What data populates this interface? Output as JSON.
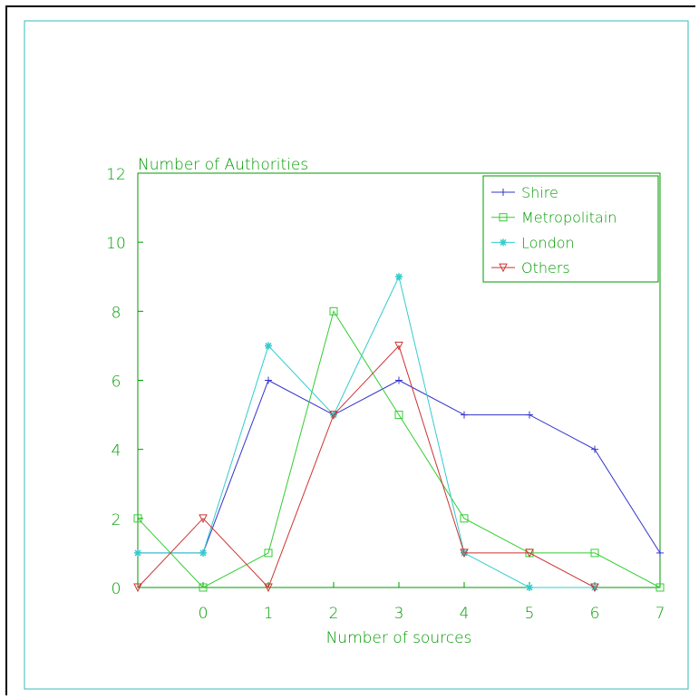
{
  "chart_data": {
    "type": "line",
    "title": "",
    "ylabel": "Number of Authorities",
    "xlabel": "Number of sources",
    "x_positions": [
      -1,
      0,
      1,
      2,
      3,
      4,
      5,
      6,
      7
    ],
    "x_tick_labels": [
      "0",
      "1",
      "2",
      "3",
      "4",
      "5",
      "6",
      "7"
    ],
    "x_tick_values": [
      0,
      1,
      2,
      3,
      4,
      5,
      6,
      7
    ],
    "xlim": [
      -1,
      7
    ],
    "ylim": [
      0,
      12
    ],
    "y_ticks": [
      0,
      2,
      4,
      6,
      8,
      10,
      12
    ],
    "grid": false,
    "legend_position": "top-right",
    "series": [
      {
        "name": "Shire",
        "color": "#3333cc",
        "marker": "plus",
        "values": [
          1,
          1,
          6,
          5,
          6,
          5,
          5,
          4,
          1
        ]
      },
      {
        "name": "Metropolitain",
        "color": "#33cc33",
        "marker": "square",
        "values": [
          2,
          0,
          1,
          8,
          5,
          2,
          1,
          1,
          0
        ]
      },
      {
        "name": "London",
        "color": "#33cccc",
        "marker": "star",
        "values": [
          1,
          1,
          7,
          5,
          9,
          1,
          0,
          0,
          null
        ]
      },
      {
        "name": "Others",
        "color": "#cc3333",
        "marker": "triangle-down",
        "values": [
          0,
          2,
          0,
          5,
          7,
          1,
          1,
          0,
          null
        ]
      }
    ],
    "colors": {
      "axis": "#009900",
      "outer_frame": "#000000",
      "inner_frame": "#33bbbb"
    }
  }
}
